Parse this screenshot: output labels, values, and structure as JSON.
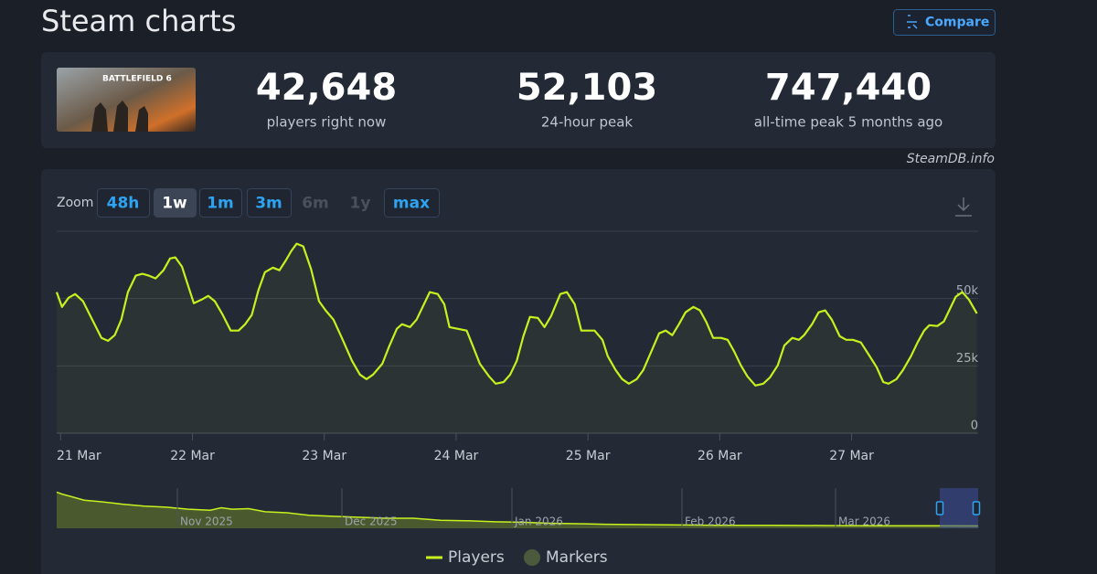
{
  "header": {
    "title": "Steam charts",
    "compare": "Compare"
  },
  "game": {
    "thumbnail_text": "BATTLEFIELD 6"
  },
  "stats": [
    {
      "value": "42,648",
      "label": "players right now"
    },
    {
      "value": "52,103",
      "label": "24-hour peak"
    },
    {
      "value": "747,440",
      "label": "all-time peak 5 months ago"
    }
  ],
  "source": "SteamDB.info",
  "zoom": {
    "label": "Zoom",
    "options": [
      {
        "text": "48h",
        "state": "enabled"
      },
      {
        "text": "1w",
        "state": "active"
      },
      {
        "text": "1m",
        "state": "enabled"
      },
      {
        "text": "3m",
        "state": "enabled"
      },
      {
        "text": "6m",
        "state": "disabled"
      },
      {
        "text": "1y",
        "state": "disabled"
      },
      {
        "text": "max",
        "state": "enabled"
      }
    ]
  },
  "chart_data": [
    {
      "type": "line",
      "x": [
        -0.03,
        0.01,
        0.06,
        0.11,
        0.17,
        0.24,
        0.31,
        0.36,
        0.41,
        0.46,
        0.51,
        0.57,
        0.62,
        0.67,
        0.72,
        0.78,
        0.83,
        0.87,
        0.92,
        0.96,
        1.01,
        1.07,
        1.12,
        1.17,
        1.23,
        1.29,
        1.35,
        1.4,
        1.45,
        1.5,
        1.55,
        1.61,
        1.66,
        1.71,
        1.75,
        1.79,
        1.84,
        1.9,
        1.96,
        2.01,
        2.07,
        2.14,
        2.21,
        2.27,
        2.32,
        2.37,
        2.44,
        2.49,
        2.55,
        2.59,
        2.65,
        2.7,
        2.75,
        2.8,
        2.86,
        2.91,
        2.95,
        3.01,
        3.08,
        3.13,
        3.18,
        3.25,
        3.3,
        3.36,
        3.41,
        3.46,
        3.51,
        3.56,
        3.62,
        3.67,
        3.72,
        3.79,
        3.84,
        3.9,
        3.95,
        3.99,
        4.05,
        4.11,
        4.15,
        4.21,
        4.26,
        4.31,
        4.37,
        4.42,
        4.48,
        4.54,
        4.59,
        4.64,
        4.69,
        4.74,
        4.8,
        4.85,
        4.9,
        4.95,
        5.01,
        5.06,
        5.11,
        5.16,
        5.21,
        5.27,
        5.33,
        5.38,
        5.44,
        5.49,
        5.55,
        5.6,
        5.64,
        5.7,
        5.75,
        5.8,
        5.85,
        5.91,
        5.96,
        6.01,
        6.07,
        6.13,
        6.19,
        6.24,
        6.28,
        6.34,
        6.39,
        6.45,
        6.5,
        6.55,
        6.59,
        6.65,
        6.7,
        6.74,
        6.79,
        6.84,
        6.89,
        6.95
      ],
      "series": [
        {
          "name": "Players",
          "color": "#c8f01e",
          "values": [
            52400,
            46900,
            50300,
            51700,
            49000,
            42200,
            35400,
            34300,
            36400,
            42200,
            52400,
            58500,
            59200,
            58500,
            57500,
            60500,
            64900,
            65300,
            61900,
            55800,
            48300,
            49600,
            51000,
            49000,
            43900,
            38100,
            38100,
            40500,
            43900,
            53000,
            59800,
            61500,
            60500,
            64300,
            67700,
            70400,
            69400,
            60900,
            49000,
            45600,
            42200,
            34700,
            26900,
            21800,
            20100,
            21800,
            25800,
            32000,
            38800,
            40500,
            39400,
            42200,
            47300,
            52400,
            51700,
            47900,
            39400,
            38800,
            38100,
            32000,
            25800,
            21100,
            18400,
            19000,
            21800,
            26900,
            36000,
            43200,
            42800,
            39400,
            43500,
            51700,
            52400,
            47900,
            38100,
            38100,
            38100,
            34700,
            28600,
            23500,
            20100,
            18400,
            20100,
            23500,
            30300,
            37100,
            38100,
            36400,
            40500,
            44900,
            46900,
            45600,
            41100,
            35400,
            35400,
            34700,
            30300,
            25200,
            21100,
            17700,
            18400,
            20700,
            25200,
            32600,
            35400,
            34700,
            36400,
            40500,
            44900,
            45600,
            42200,
            36000,
            34700,
            34700,
            33700,
            29200,
            24500,
            19000,
            18400,
            20100,
            23500,
            28600,
            33700,
            38100,
            40100,
            39800,
            41500,
            45600,
            50700,
            52400,
            49600,
            44500
          ]
        }
      ],
      "markers_legend": {
        "name": "Markers",
        "color": "#4b5a3c"
      },
      "xlim": [
        -0.03,
        6.96
      ],
      "xticks": [
        {
          "value": 0,
          "label": "21 Mar"
        },
        {
          "value": 1,
          "label": "22 Mar"
        },
        {
          "value": 2,
          "label": "23 Mar"
        },
        {
          "value": 3,
          "label": "24 Mar"
        },
        {
          "value": 4,
          "label": "25 Mar"
        },
        {
          "value": 5,
          "label": "26 Mar"
        },
        {
          "value": 6,
          "label": "27 Mar"
        }
      ],
      "ylim": [
        0,
        75000
      ],
      "yticks": [
        0,
        {
          "value": 25000,
          "label": "25k"
        },
        {
          "value": 50000,
          "label": "50k"
        }
      ],
      "grid": true,
      "legend": "bottom"
    },
    {
      "type": "area",
      "x": [
        0,
        1,
        3,
        5,
        8,
        12,
        16,
        20,
        24,
        28,
        30,
        32,
        35,
        38,
        42,
        46,
        50,
        55,
        60,
        65,
        70,
        75,
        80,
        85,
        90,
        95,
        100,
        110,
        120,
        130,
        140,
        150,
        160,
        168
      ],
      "values": [
        720000,
        680000,
        620000,
        560000,
        530000,
        480000,
        440000,
        420000,
        380000,
        360000,
        410000,
        380000,
        390000,
        330000,
        310000,
        260000,
        240000,
        220000,
        200000,
        200000,
        160000,
        150000,
        130000,
        120000,
        100000,
        90000,
        80000,
        70000,
        60000,
        60000,
        55000,
        50000,
        50000,
        48000
      ],
      "color": "#c8f01e",
      "xlim": [
        0,
        168
      ],
      "ylim": [
        0,
        800000
      ],
      "xticks": [
        {
          "value": 22,
          "label": "Nov 2025"
        },
        {
          "value": 52,
          "label": "Dec 2025"
        },
        {
          "value": 83,
          "label": "Jan 2026"
        },
        {
          "value": 114,
          "label": "Feb 2026"
        },
        {
          "value": 142,
          "label": "Mar 2026"
        }
      ]
    }
  ]
}
